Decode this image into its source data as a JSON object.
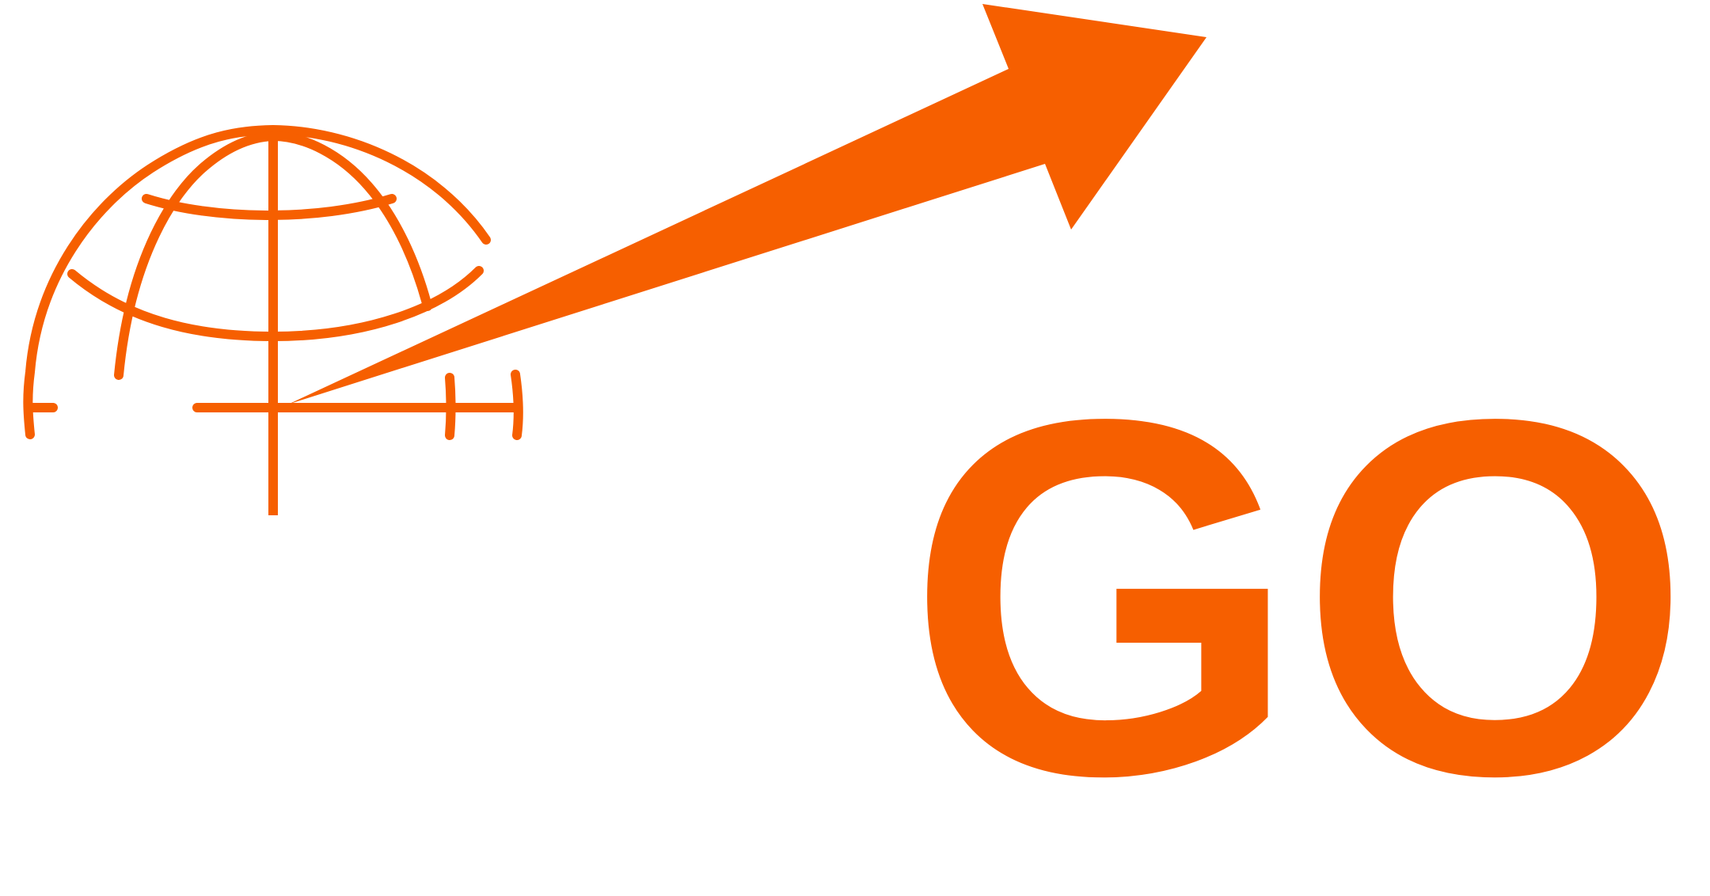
{
  "logo": {
    "text": "GO",
    "icons": [
      "globe-icon",
      "crosshair-icon",
      "arrow-icon"
    ],
    "colors": {
      "brand": "#f65f00",
      "background": "#ffffff"
    }
  }
}
